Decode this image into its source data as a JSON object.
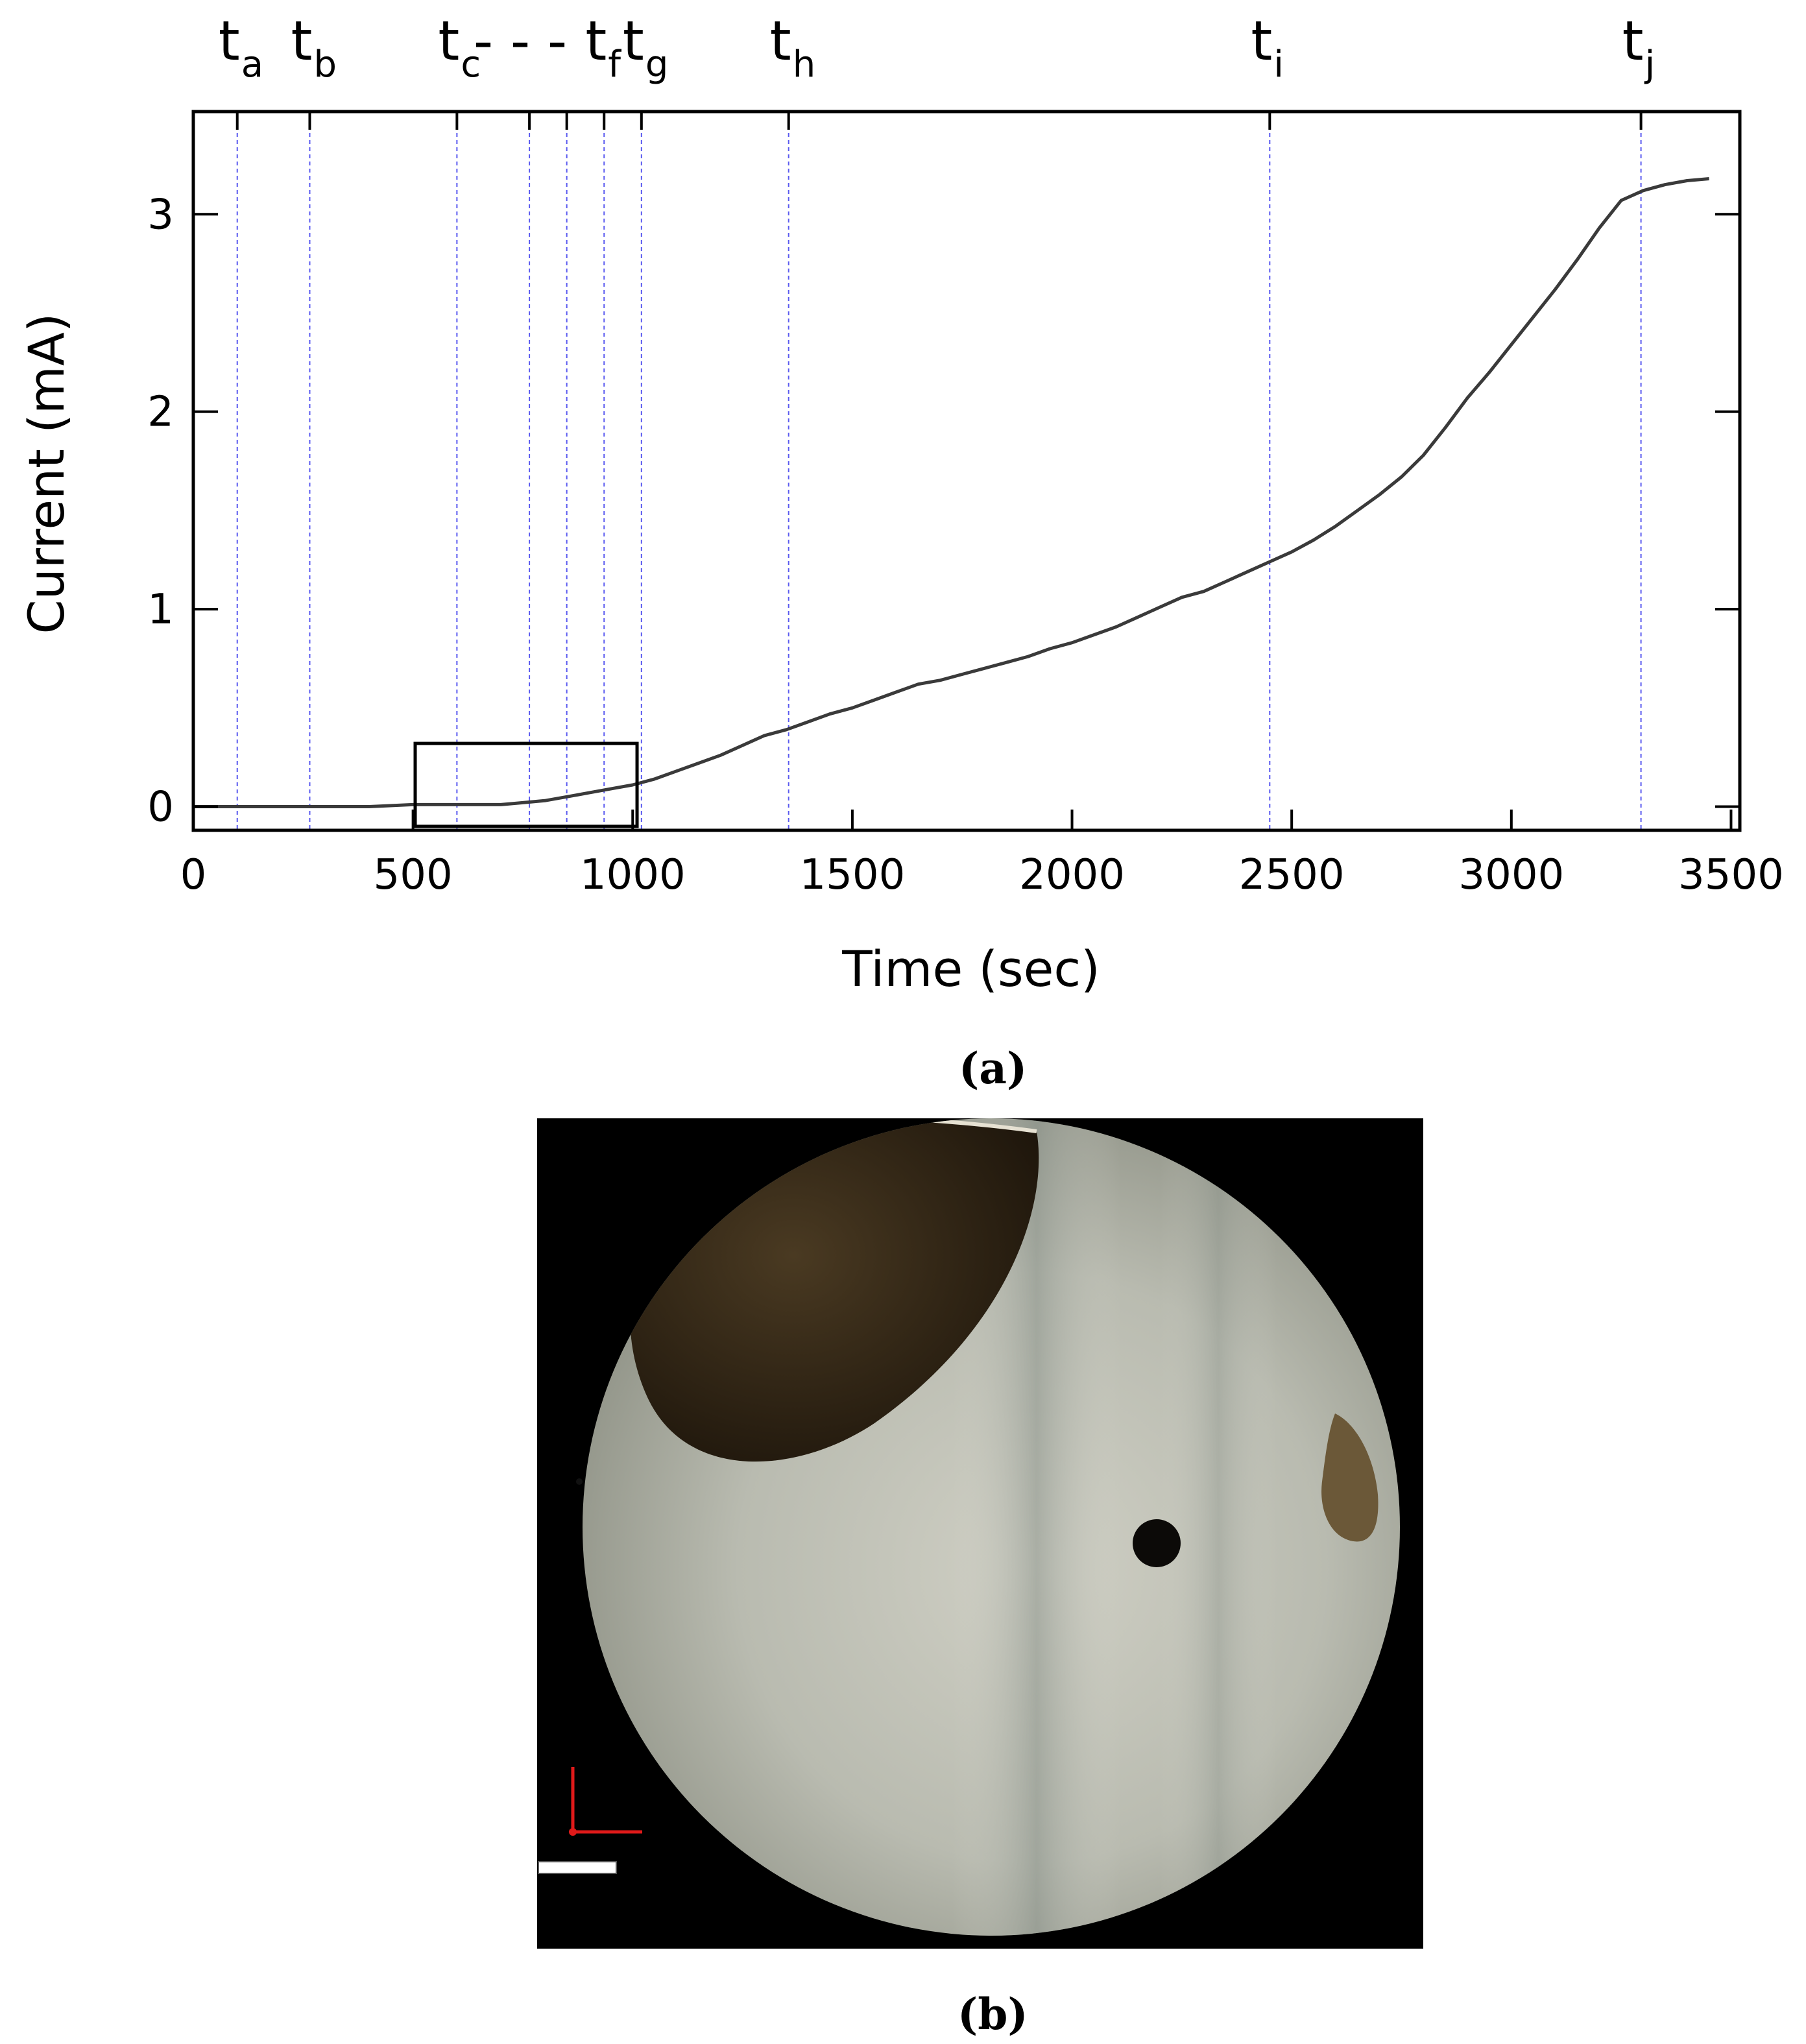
{
  "chart_data": {
    "type": "line",
    "xlabel": "Time (sec)",
    "ylabel": "Current (mA)",
    "xlim": [
      0,
      3520
    ],
    "ylim": [
      -0.12,
      3.52
    ],
    "xticks": [
      0,
      500,
      1000,
      1500,
      2000,
      2500,
      3000,
      3500
    ],
    "xtick_labels": [
      "0",
      "500",
      "1000",
      "1500",
      "2000",
      "2500",
      "3000",
      "3500"
    ],
    "yticks": [
      0,
      1,
      2,
      3
    ],
    "ytick_labels": [
      "0",
      "1",
      "2",
      "3"
    ],
    "grid": false,
    "series": [
      {
        "color": "#3a3a3a",
        "x": [
          0,
          100,
          200,
          300,
          400,
          500,
          600,
          700,
          750,
          800,
          850,
          900,
          950,
          1000,
          1050,
          1100,
          1150,
          1200,
          1250,
          1300,
          1350,
          1400,
          1450,
          1500,
          1550,
          1600,
          1650,
          1700,
          1750,
          1800,
          1850,
          1900,
          1950,
          2000,
          2050,
          2100,
          2150,
          2200,
          2250,
          2300,
          2350,
          2400,
          2450,
          2500,
          2550,
          2600,
          2650,
          2700,
          2750,
          2800,
          2850,
          2900,
          2950,
          3000,
          3050,
          3100,
          3150,
          3200,
          3250,
          3300,
          3350,
          3400,
          3450
        ],
        "y": [
          0.0,
          0.0,
          0.0,
          0.0,
          0.0,
          0.01,
          0.01,
          0.01,
          0.02,
          0.03,
          0.05,
          0.07,
          0.09,
          0.11,
          0.14,
          0.18,
          0.22,
          0.26,
          0.31,
          0.36,
          0.39,
          0.43,
          0.47,
          0.5,
          0.54,
          0.58,
          0.62,
          0.64,
          0.67,
          0.7,
          0.73,
          0.76,
          0.8,
          0.83,
          0.87,
          0.91,
          0.96,
          1.01,
          1.06,
          1.09,
          1.14,
          1.19,
          1.24,
          1.29,
          1.35,
          1.42,
          1.5,
          1.58,
          1.67,
          1.78,
          1.92,
          2.07,
          2.2,
          2.34,
          2.48,
          2.62,
          2.77,
          2.93,
          3.07,
          3.12,
          3.15,
          3.17,
          3.18
        ]
      }
    ],
    "markers": [
      {
        "label": "t",
        "sub": "a",
        "x": 100
      },
      {
        "label": "t",
        "sub": "b",
        "x": 265
      },
      {
        "label": "t",
        "sub": "c",
        "x": 600
      },
      {
        "label": "",
        "sub": "",
        "x": 765
      },
      {
        "label": "",
        "sub": "",
        "x": 850
      },
      {
        "label": "t",
        "sub": "f",
        "x": 935
      },
      {
        "label": "t",
        "sub": "g",
        "x": 1020
      },
      {
        "label": "t",
        "sub": "h",
        "x": 1355
      },
      {
        "label": "t",
        "sub": "i",
        "x": 2450
      },
      {
        "label": "t",
        "sub": "j",
        "x": 3295
      }
    ],
    "markers_dashes": "- - -",
    "inset_box": {
      "x0": 505,
      "x1": 1010,
      "y0": -0.1,
      "y1": 0.32
    }
  },
  "captions": {
    "a": "(a)",
    "b": "(b)"
  }
}
